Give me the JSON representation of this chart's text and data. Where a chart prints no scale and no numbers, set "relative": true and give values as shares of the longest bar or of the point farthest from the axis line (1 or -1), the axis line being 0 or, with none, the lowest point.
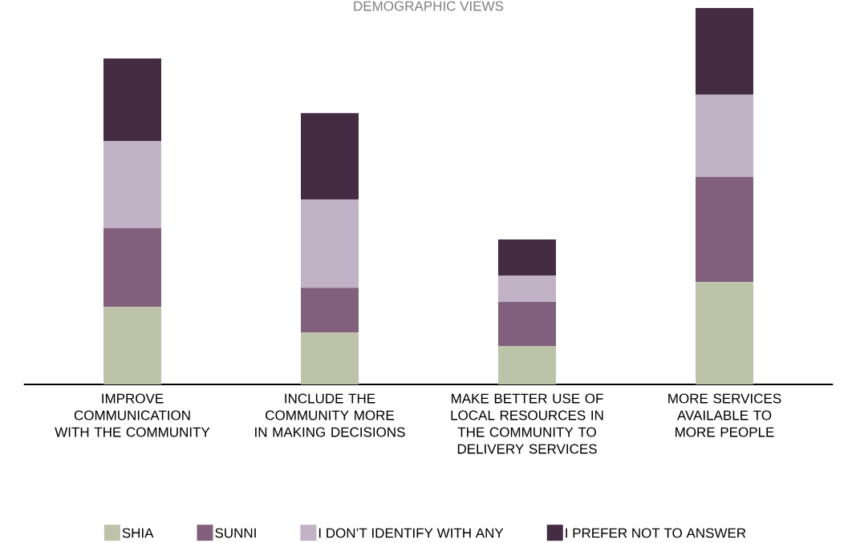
{
  "chart_data": {
    "type": "bar",
    "title": "DEMOGRAPHIC VIEWS",
    "relative": true,
    "stacked": true,
    "legend": "bottom",
    "categories": [
      "IMPROVE COMMUNICATION WITH THE COMMUNITY",
      "INCLUDE THE COMMUNITY MORE IN MAKING DECISIONS",
      "MAKE BETTER USE OF LOCAL RESOURCES IN THE COMMUNITY TO DELIVERY SERVICES",
      "MORE SERVICES AVAILABLE TO MORE PEOPLE"
    ],
    "series": [
      {
        "name": "SHIA",
        "color": "#bdc3a8",
        "values": [
          0.206,
          0.138,
          0.102,
          0.272
        ]
      },
      {
        "name": "SUNNI",
        "color": "#80607c",
        "values": [
          0.209,
          0.119,
          0.117,
          0.279
        ]
      },
      {
        "name": "I DON’T IDENTIFY WITH ANY",
        "color": "#c1b2c5",
        "values": [
          0.232,
          0.234,
          0.07,
          0.219
        ]
      },
      {
        "name": "I PREFER NOT TO ANSWER",
        "color": "#442c42",
        "values": [
          0.219,
          0.23,
          0.096,
          0.23
        ]
      }
    ]
  }
}
